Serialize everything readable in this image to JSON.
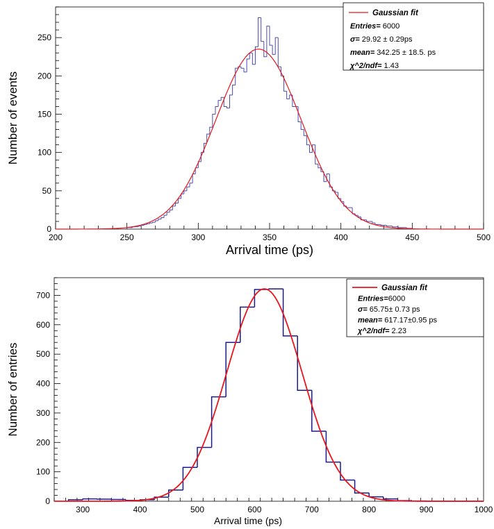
{
  "chart_data": [
    {
      "type": "histogram",
      "title": "",
      "xlabel": "Arrival time (ps)",
      "ylabel": "Number of events",
      "xlim": [
        200,
        500
      ],
      "ylim": [
        0,
        290
      ],
      "xticks": [
        200,
        250,
        300,
        350,
        400,
        450,
        500
      ],
      "yticks": [
        0,
        50,
        100,
        150,
        200,
        250
      ],
      "grid": false,
      "legend_position": "top-right",
      "bin_width": 2,
      "series": [
        {
          "name": "",
          "style": "step",
          "color": "#4b4bb0",
          "x_start": 250,
          "values": [
            2,
            2,
            3,
            3,
            4,
            5,
            6,
            7,
            8,
            9,
            11,
            13,
            15,
            18,
            22,
            25,
            30,
            34,
            40,
            46,
            50,
            55,
            60,
            72,
            80,
            88,
            100,
            112,
            124,
            133,
            150,
            160,
            168,
            172,
            160,
            158,
            175,
            188,
            210,
            212,
            210,
            205,
            222,
            230,
            215,
            238,
            276,
            245,
            225,
            265,
            240,
            228,
            250,
            212,
            200,
            180,
            170,
            175,
            160,
            160,
            140,
            130,
            122,
            110,
            100,
            110,
            85,
            80,
            75,
            62,
            72,
            55,
            50,
            48,
            40,
            36,
            30,
            28,
            28,
            20,
            18,
            16,
            12,
            12,
            10,
            10,
            8,
            6,
            6,
            5,
            5,
            4,
            4,
            3,
            3,
            2,
            2,
            2,
            1,
            1
          ]
        },
        {
          "name": "Gaussian fit",
          "style": "curve",
          "color": "#e8161b",
          "function": "gaussian",
          "amplitude": 235,
          "mean": 342.25,
          "sigma": 29.92
        }
      ],
      "legend": {
        "entry_label": "Gaussian fit",
        "rows": [
          {
            "key": "Entries=",
            "value": " 6000"
          },
          {
            "key": "σ=",
            "value": " 29.92 ± 0.29ps"
          },
          {
            "key": "mean=",
            "value": " 342.25 ± 18.5. ps"
          },
          {
            "key": "χ^2/ndf=",
            "value": " 1.43"
          }
        ]
      }
    },
    {
      "type": "histogram",
      "title": "",
      "xlabel": "Arrival time (ps)",
      "ylabel": "Number of entries",
      "xlim": [
        250,
        1000
      ],
      "ylim": [
        0,
        760
      ],
      "xticks": [
        300,
        400,
        500,
        600,
        700,
        800,
        900,
        1000
      ],
      "yticks": [
        0,
        100,
        200,
        300,
        400,
        500,
        600,
        700
      ],
      "grid": false,
      "legend_position": "top-right",
      "bin_width": 25,
      "series": [
        {
          "name": "",
          "style": "step",
          "color": "#1a1a8a",
          "x_start": 275,
          "values": [
            5,
            8,
            7,
            6,
            3,
            5,
            14,
            38,
            115,
            183,
            355,
            540,
            660,
            720,
            722,
            562,
            377,
            238,
            133,
            72,
            28,
            15,
            8,
            2,
            1,
            0,
            0,
            0,
            0
          ]
        },
        {
          "name": "Gaussian fit",
          "style": "curve",
          "color": "#e8161b",
          "function": "gaussian",
          "amplitude": 722,
          "mean": 617.17,
          "sigma": 65.75
        }
      ],
      "legend": {
        "entry_label": "Gaussian fit",
        "rows": [
          {
            "key": "Entries=",
            "value": "6000"
          },
          {
            "key": "σ=",
            "value": " 65.75± 0.73 ps"
          },
          {
            "key": "mean=",
            "value": " 617.17±0.95 ps"
          },
          {
            "key": "χ^2/ndf=",
            "value": " 2.23"
          }
        ]
      }
    }
  ]
}
